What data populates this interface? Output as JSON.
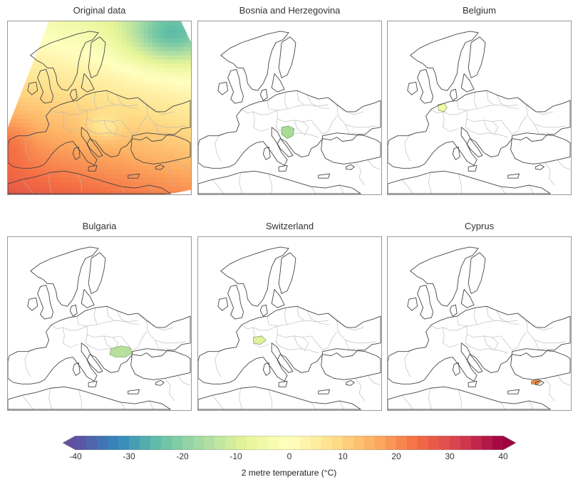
{
  "panels": [
    {
      "id": "original",
      "title": "Original data",
      "highlight": "field"
    },
    {
      "id": "bih",
      "title": "Bosnia and Herzegovina",
      "highlight": "bih"
    },
    {
      "id": "belgium",
      "title": "Belgium",
      "highlight": "belgium"
    },
    {
      "id": "bulgaria",
      "title": "Bulgaria",
      "highlight": "bulgaria"
    },
    {
      "id": "switzerland",
      "title": "Switzerland",
      "highlight": "switzerland"
    },
    {
      "id": "cyprus",
      "title": "Cyprus",
      "highlight": "cyprus"
    }
  ],
  "colorbar": {
    "label": "2 metre temperature (°C)",
    "min": -40,
    "max": 40,
    "ticks": [
      "-40",
      "-30",
      "-20",
      "-10",
      "0",
      "10",
      "20",
      "30",
      "40"
    ],
    "colors": [
      "#5e4fa2",
      "#3288bd",
      "#66c2a5",
      "#abdda4",
      "#e6f598",
      "#ffffbf",
      "#fee08b",
      "#fdae61",
      "#f46d43",
      "#d53e4f",
      "#9e0142"
    ]
  },
  "highlight_colors": {
    "bih": "#a9db99",
    "belgium": "#f4f8a8",
    "bulgaria": "#b7e09c",
    "switzerland": "#e2f29a",
    "cyprus": "#f2894c"
  }
}
